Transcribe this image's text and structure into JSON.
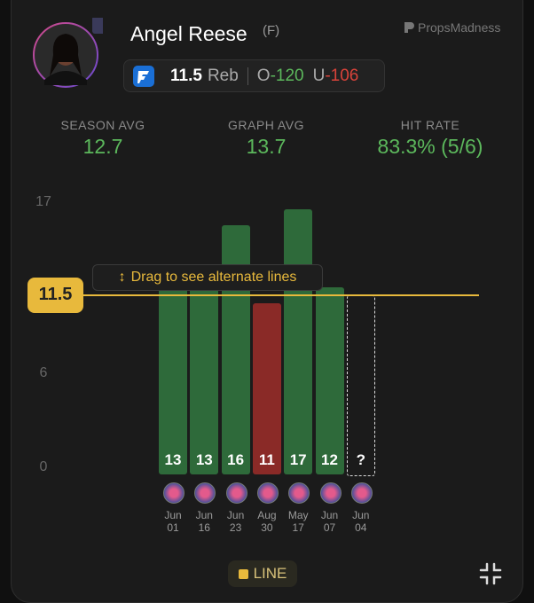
{
  "header": {
    "name": "Angel Reese",
    "position": "(F)",
    "brand": "PropsMadness"
  },
  "prop": {
    "line": "11.5",
    "stat": "Reb",
    "over_label": "O",
    "over_odds": "-120",
    "under_label": "U",
    "under_odds": "-106"
  },
  "stats": [
    {
      "label": "SEASON AVG",
      "value": "12.7"
    },
    {
      "label": "GRAPH AVG",
      "value": "13.7"
    },
    {
      "label": "HIT RATE",
      "value": "83.3% (5/6)"
    }
  ],
  "hint": "Drag to see alternate lines",
  "button": "LINE",
  "chart_data": {
    "type": "bar",
    "categories": [
      "Jun 01",
      "Jun 16",
      "Jun 23",
      "Aug 30",
      "May 17",
      "Jun 07",
      "Jun 04"
    ],
    "values": [
      13,
      13,
      16,
      11,
      17,
      12,
      null
    ],
    "colors": [
      "#2e6a3a",
      "#2e6a3a",
      "#2e6a3a",
      "#8a2a27",
      "#2e6a3a",
      "#2e6a3a",
      null
    ],
    "pending_label": "?",
    "line_value": 11.5,
    "line_color": "#e8b93c",
    "ylim": [
      0,
      17
    ],
    "yticks": [
      0,
      6,
      17
    ]
  }
}
